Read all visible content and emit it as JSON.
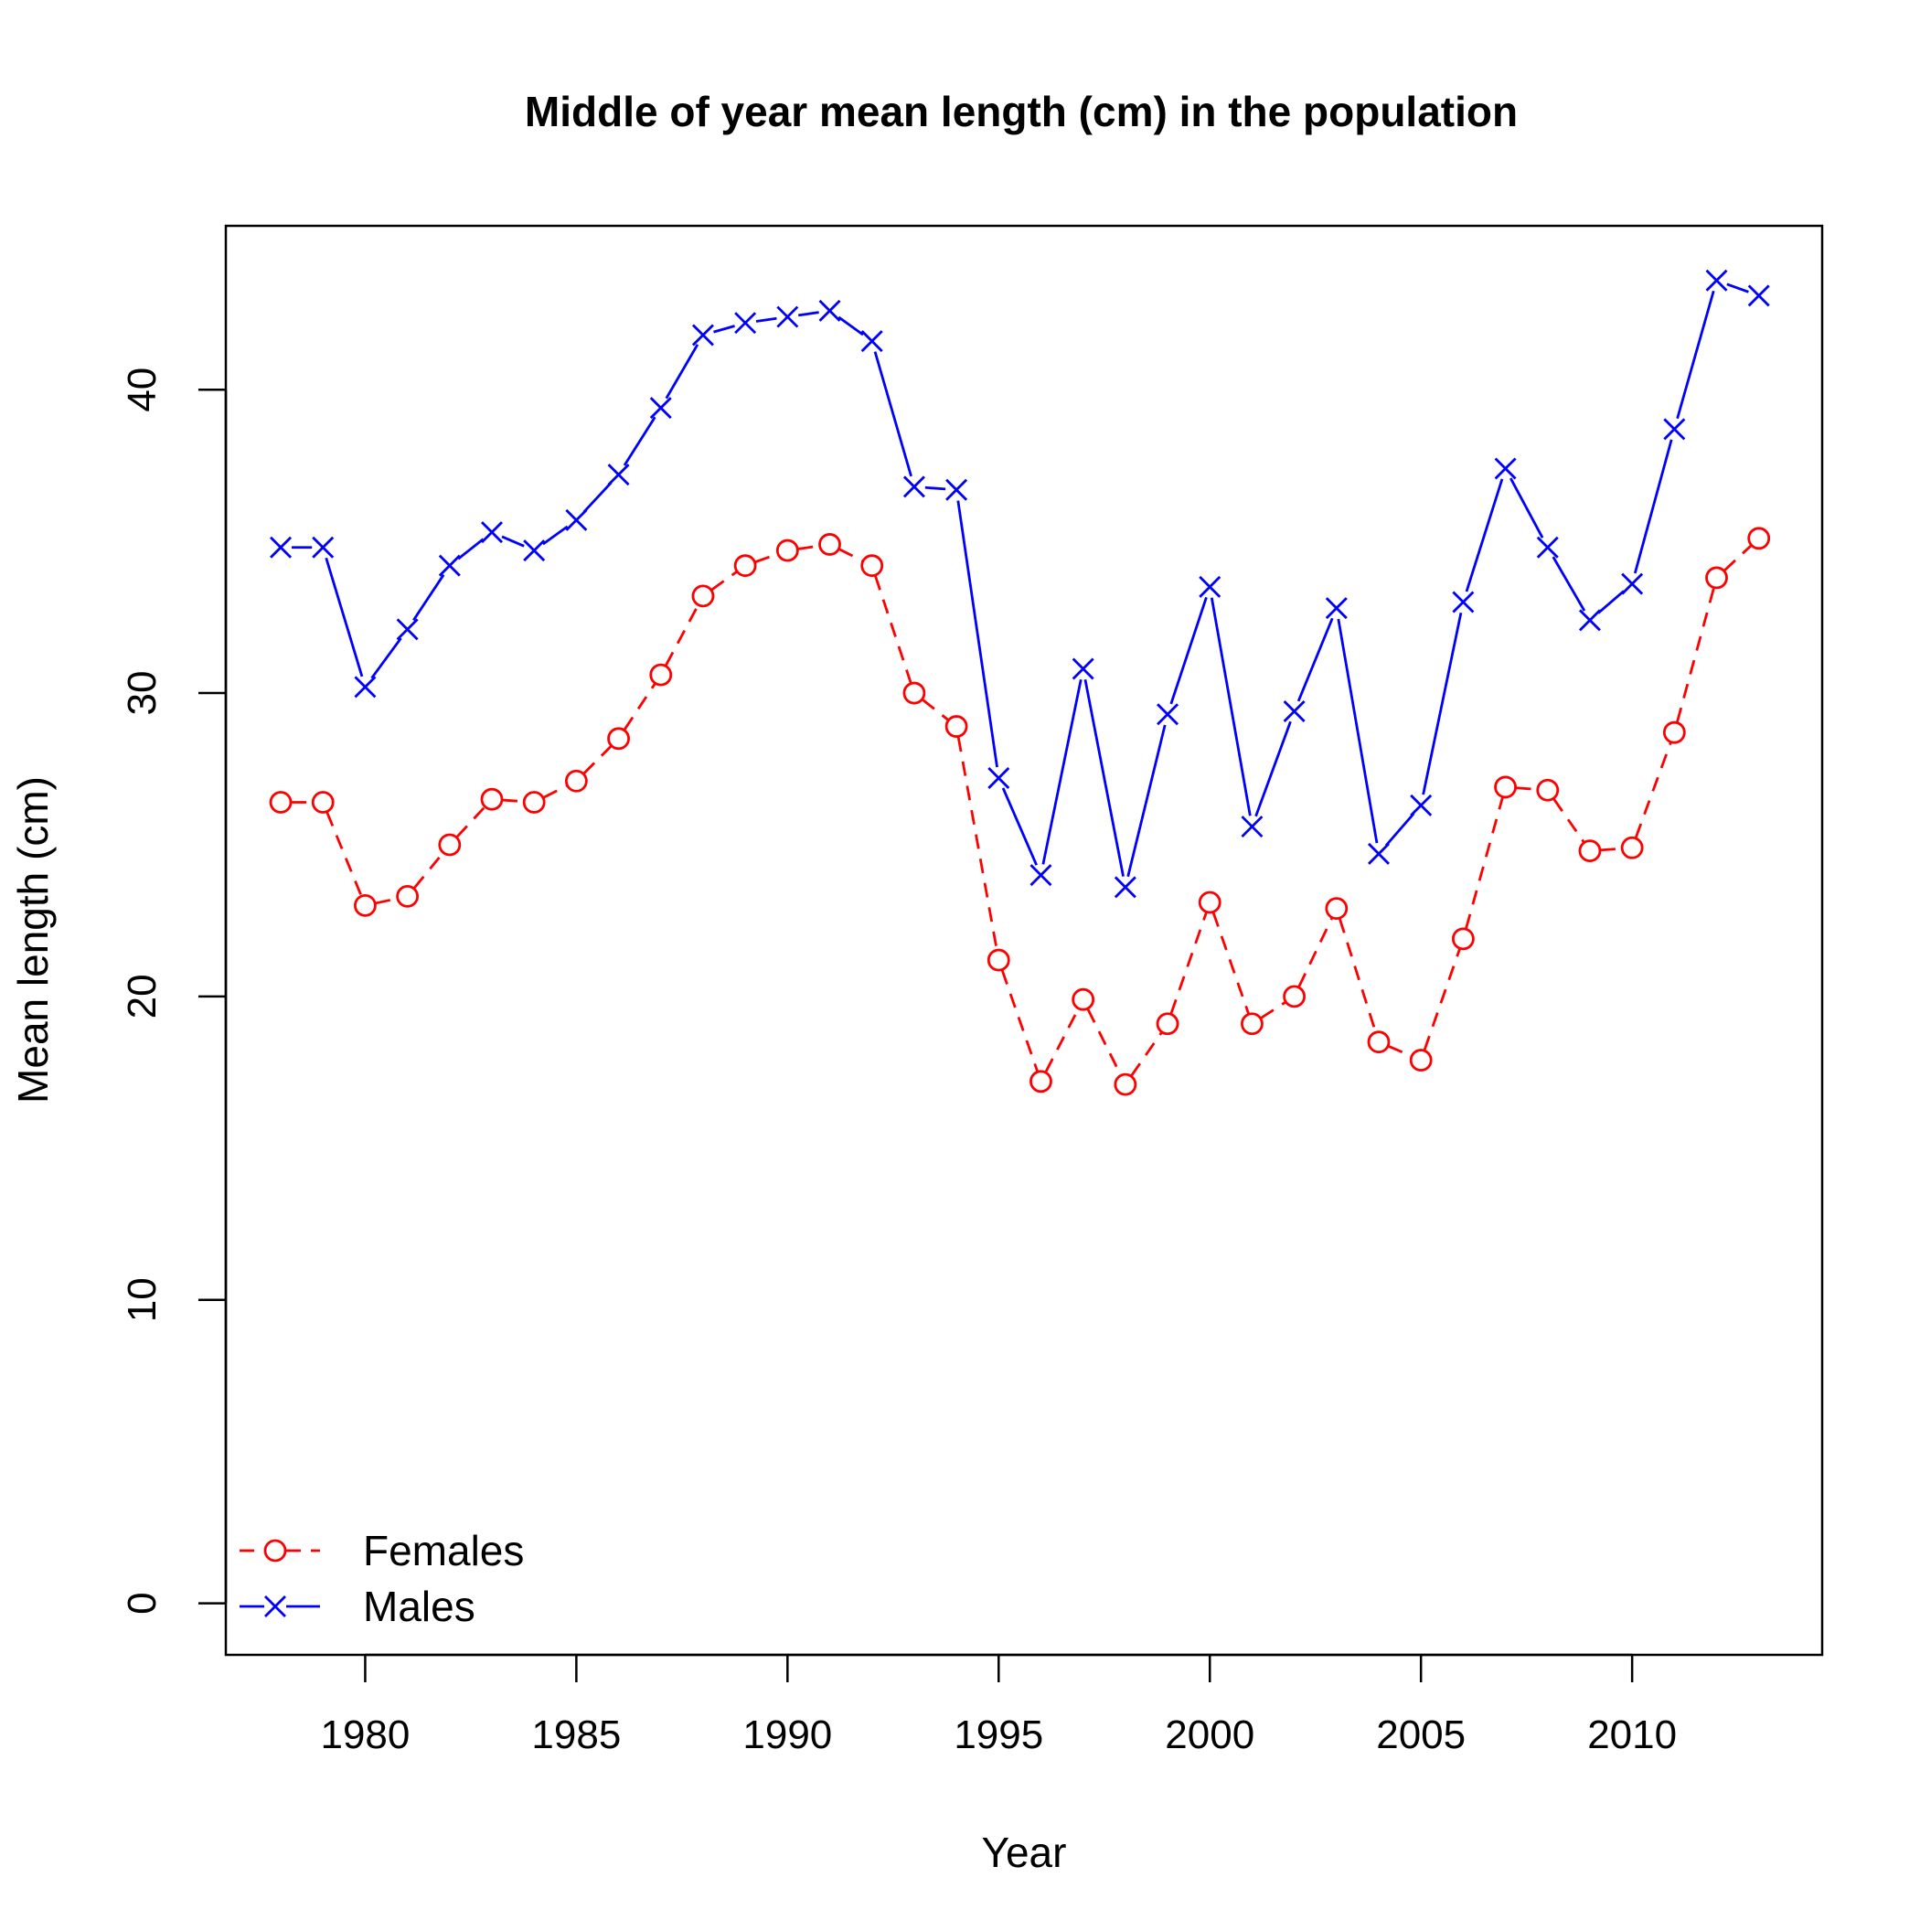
{
  "chart_data": {
    "type": "line",
    "title": "Middle of year mean length (cm) in the population",
    "xlabel": "Year",
    "ylabel": "Mean length (cm)",
    "xlim": [
      1976.7,
      2014.5
    ],
    "ylim": [
      -1.7,
      45.4
    ],
    "x_ticks": [
      1980,
      1985,
      1990,
      1995,
      2000,
      2005,
      2010
    ],
    "y_ticks": [
      0,
      10,
      20,
      30,
      40
    ],
    "legend_position": "bottom-left",
    "x": [
      1978,
      1979,
      1980,
      1981,
      1982,
      1983,
      1984,
      1985,
      1986,
      1987,
      1988,
      1989,
      1990,
      1991,
      1992,
      1993,
      1994,
      1995,
      1996,
      1997,
      1998,
      1999,
      2000,
      2001,
      2002,
      2003,
      2004,
      2005,
      2006,
      2007,
      2008,
      2009,
      2010,
      2011,
      2012,
      2013
    ],
    "series": [
      {
        "name": "Females",
        "color": "#ff0000",
        "line_style": "dashed",
        "marker": "circle",
        "values": [
          26.4,
          26.4,
          23.0,
          23.3,
          25.0,
          26.5,
          26.4,
          27.1,
          28.5,
          30.6,
          33.2,
          34.2,
          34.7,
          34.9,
          34.2,
          30.0,
          28.9,
          21.2,
          17.2,
          19.9,
          17.1,
          19.1,
          23.1,
          19.1,
          20.0,
          22.9,
          18.5,
          17.9,
          21.9,
          26.9,
          26.8,
          24.8,
          24.9,
          28.7,
          33.8,
          35.1
        ]
      },
      {
        "name": "Males",
        "color": "#0000ff",
        "line_style": "solid",
        "marker": "x",
        "values": [
          34.8,
          34.8,
          30.2,
          32.1,
          34.2,
          35.3,
          34.7,
          35.7,
          37.2,
          39.4,
          41.8,
          42.2,
          42.4,
          42.6,
          41.6,
          36.8,
          36.7,
          27.2,
          24.0,
          30.8,
          23.6,
          29.3,
          33.5,
          25.6,
          29.4,
          32.8,
          24.7,
          26.3,
          33.0,
          37.4,
          34.8,
          32.4,
          33.6,
          38.7,
          43.6,
          43.1
        ]
      }
    ]
  }
}
